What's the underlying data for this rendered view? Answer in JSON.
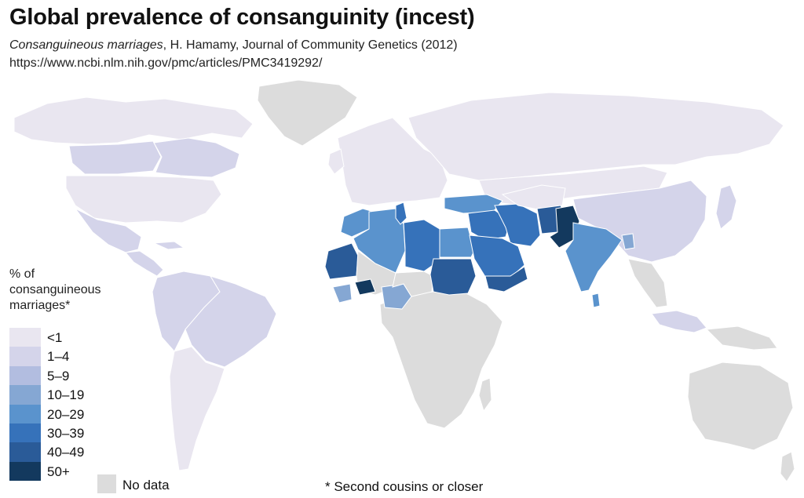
{
  "title": "Global prevalence of consanguinity (incest)",
  "subtitle": {
    "italic_part": "Consanguineous marriages",
    "rest": ", H. Hamamy, Journal of Community Genetics (2012)"
  },
  "url": "https://www.ncbi.nlm.nih.gov/pmc/articles/PMC3419292/",
  "legend": {
    "title_lines": [
      "% of",
      "consanguineous",
      "marriages*"
    ],
    "items": [
      {
        "label": "<1",
        "color": "#e9e6f0"
      },
      {
        "label": "1–4",
        "color": "#d4d4ea"
      },
      {
        "label": "5–9",
        "color": "#b2bde0"
      },
      {
        "label": "10–19",
        "color": "#85a7d3"
      },
      {
        "label": "20–29",
        "color": "#5a93cd"
      },
      {
        "label": "30–39",
        "color": "#3672ba"
      },
      {
        "label": "40–49",
        "color": "#2a5b98"
      },
      {
        "label": "50+",
        "color": "#13395e"
      }
    ],
    "no_data_label": "No data",
    "no_data_color": "#dcdcdc"
  },
  "footnote": "* Second cousins or closer",
  "regions": {
    "north_america_high_latitude": "<1",
    "canada_west": "1–4",
    "canada_east": "1–4",
    "usa": "<1",
    "mexico": "1–4",
    "central_america": "1–4",
    "south_america": "1–4",
    "brazil": "1–4",
    "southern_cone": "<1",
    "greenland": "no data",
    "europe": "<1",
    "russia": "<1",
    "morocco": "20–29",
    "algeria": "20–29",
    "tunisia": "30–39",
    "libya": "30–39",
    "egypt": "20–29",
    "mauritania": "40–49",
    "burkina_faso": "50+",
    "guinea": "10–19",
    "nigeria": "10–19",
    "sudan": "40–49",
    "sub_saharan_africa": "no data",
    "turkey": "20–29",
    "iraq": "30–39",
    "iran": "30–39",
    "saudi_arabia": "30–39",
    "yemen": "40–49",
    "afghanistan": "40–49",
    "pakistan": "50+",
    "india": "20–29",
    "bangladesh": "10–19",
    "sri_lanka": "20–29",
    "china": "1–4",
    "mongolia": "<1",
    "southeast_asia": "no data",
    "indonesia": "1–4",
    "australia": "no data"
  }
}
